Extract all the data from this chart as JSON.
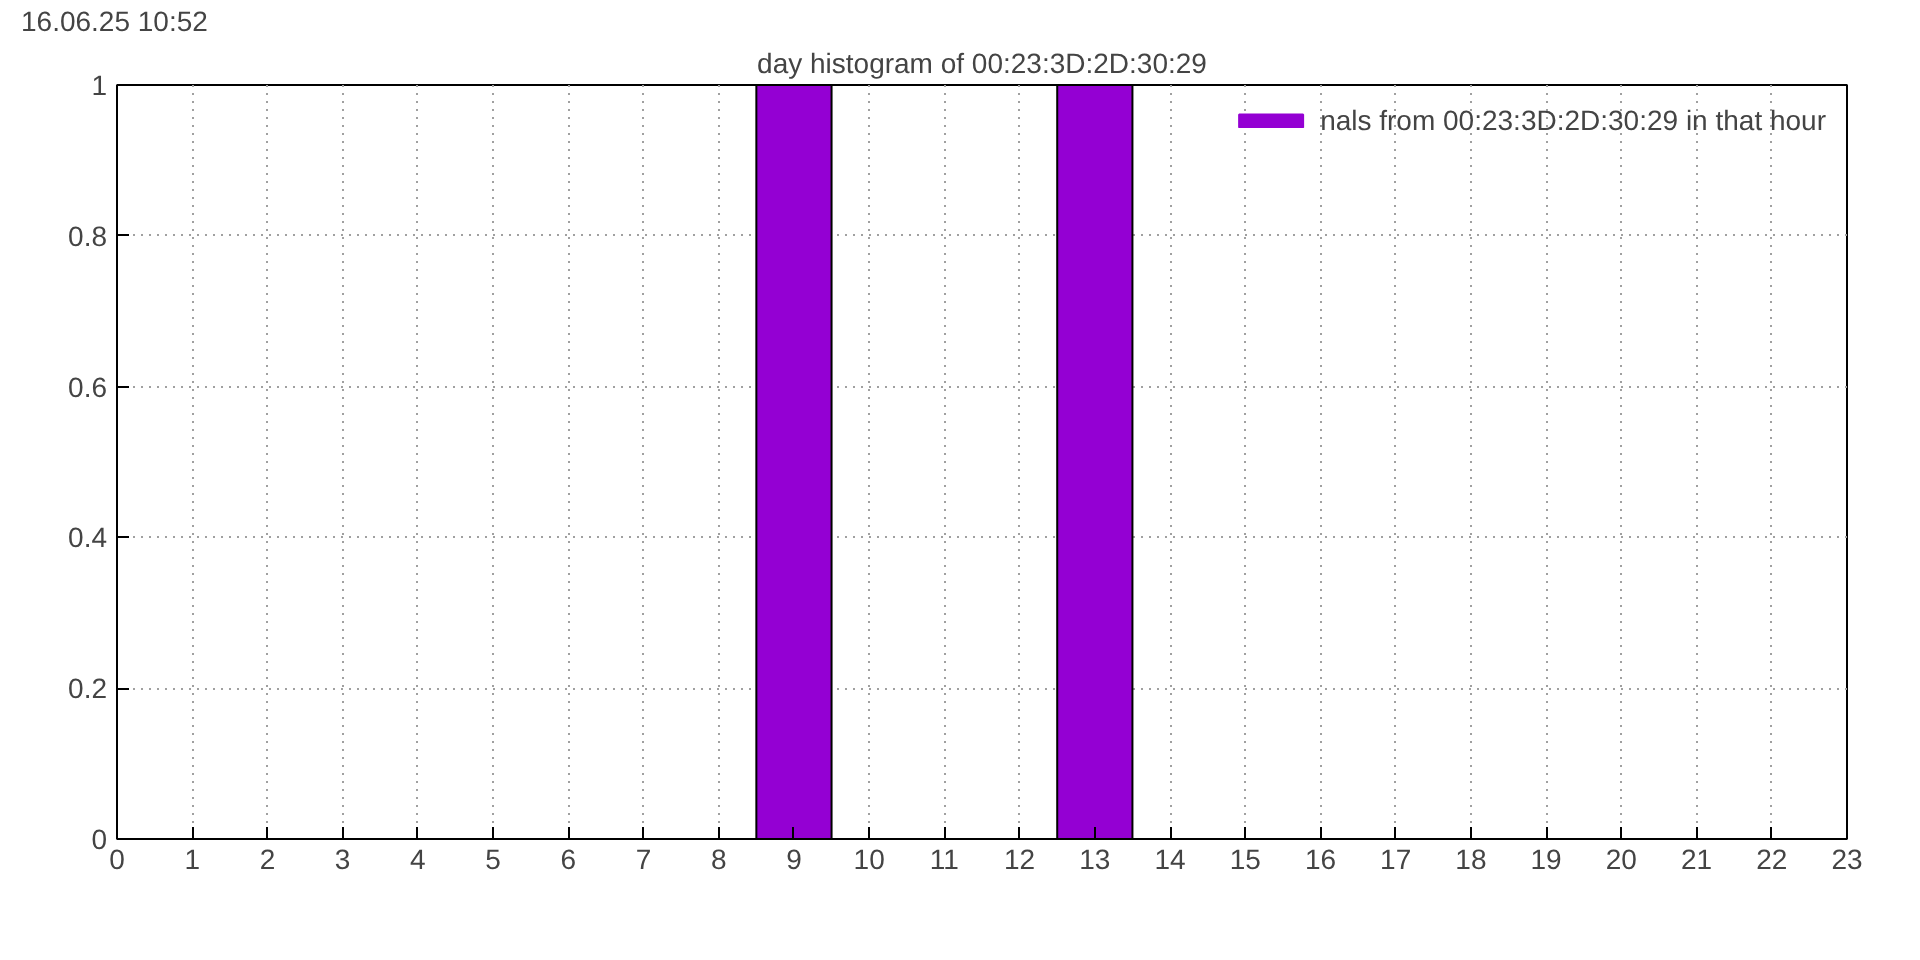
{
  "chart_data": {
    "type": "bar",
    "title": "day histogram of 00:23:3D:2D:30:29",
    "annotations": [
      "16.06.25 10:52"
    ],
    "x": [
      0,
      1,
      2,
      3,
      4,
      5,
      6,
      7,
      8,
      9,
      10,
      11,
      12,
      13,
      14,
      15,
      16,
      17,
      18,
      19,
      20,
      21,
      22,
      23
    ],
    "series": [
      {
        "name": "nals from 00:23:3D:2D:30:29 in that hour",
        "color": "#9400d3",
        "values": [
          0,
          0,
          0,
          0,
          0,
          0,
          0,
          0,
          0,
          1,
          0,
          0,
          0,
          1,
          0,
          0,
          0,
          0,
          0,
          0,
          0,
          0,
          0,
          0
        ]
      }
    ],
    "xlim": [
      0,
      23
    ],
    "xticks": [
      0,
      1,
      2,
      3,
      4,
      5,
      6,
      7,
      8,
      9,
      10,
      11,
      12,
      13,
      14,
      15,
      16,
      17,
      18,
      19,
      20,
      21,
      22,
      23
    ],
    "ylim": [
      0,
      1
    ],
    "yticks": [
      0,
      0.2,
      0.4,
      0.6,
      0.8,
      1
    ],
    "grid": true,
    "legend": "top right"
  }
}
